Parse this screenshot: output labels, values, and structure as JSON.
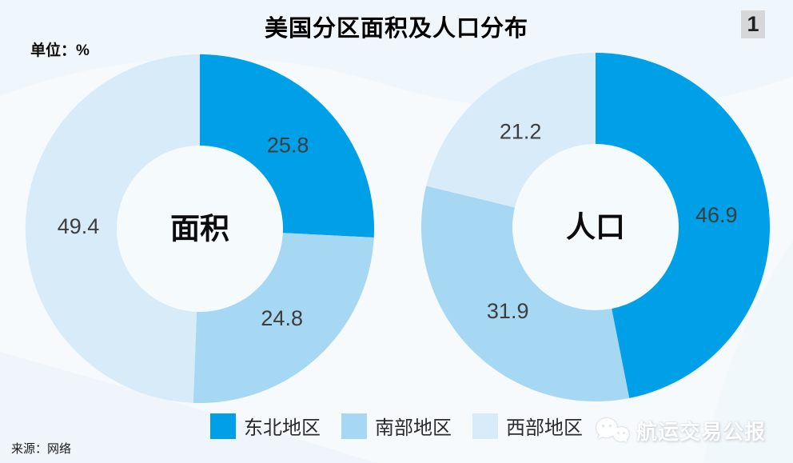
{
  "page": {
    "title": "美国分区面积及人口分布",
    "badge_number": "1",
    "unit_label": "单位：%"
  },
  "legend": {
    "items": [
      {
        "label": "东北地区",
        "color": "#00A0E9"
      },
      {
        "label": "南部地区",
        "color": "#A6D8F3"
      },
      {
        "label": "西部地区",
        "color": "#D7EBF8"
      }
    ]
  },
  "footer": {
    "source": "来源：网络",
    "watermark": "航运交易公报"
  },
  "chart_data": {
    "type": "pie",
    "subtype": "donut",
    "title": "美国分区面积及人口分布",
    "unit": "%",
    "categories": [
      "东北地区",
      "南部地区",
      "西部地区"
    ],
    "colors": [
      "#00A0E9",
      "#A6D8F3",
      "#D7EBF8"
    ],
    "hole_color": "#F5FAFD",
    "start_angle_deg": 0,
    "direction": "clockwise",
    "legend_position": "bottom",
    "charts": [
      {
        "name": "面积",
        "values": [
          25.8,
          24.8,
          49.4
        ]
      },
      {
        "name": "人口",
        "values": [
          46.9,
          31.9,
          21.2
        ]
      }
    ]
  }
}
